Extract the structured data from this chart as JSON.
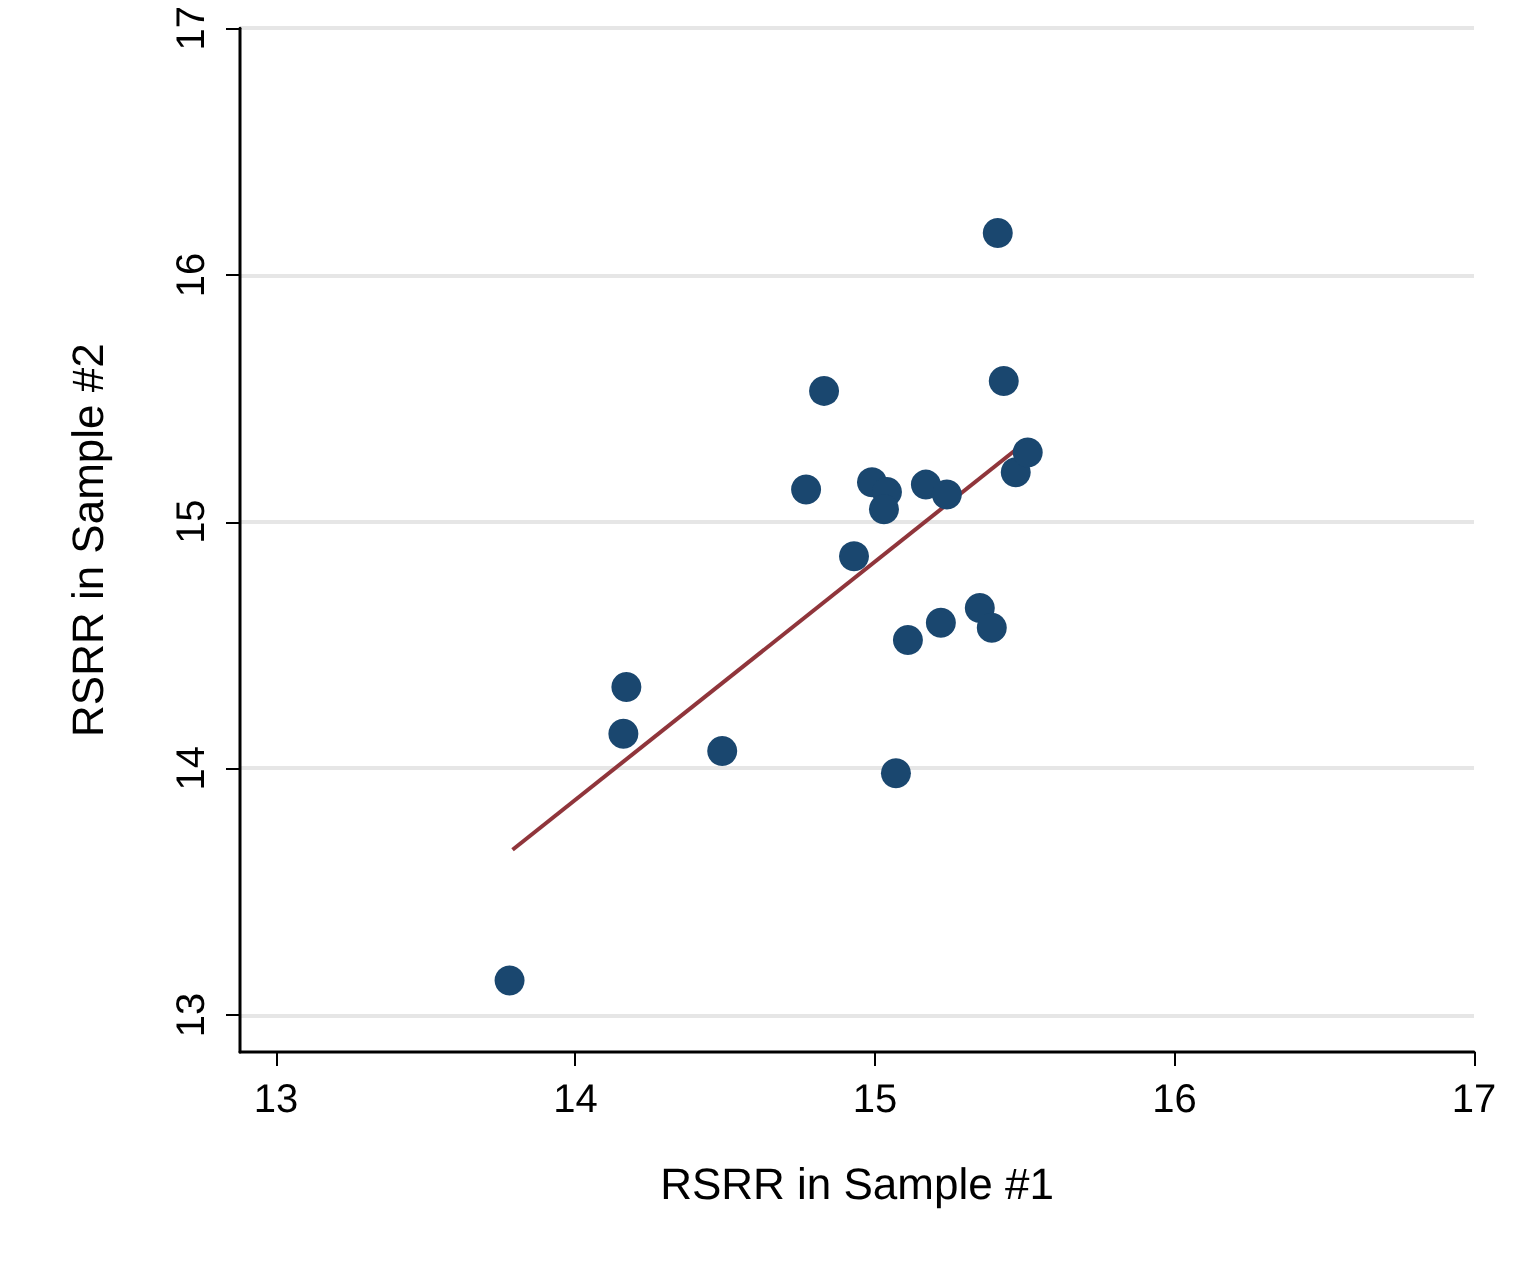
{
  "chart_data": {
    "type": "scatter",
    "xlabel": "RSRR in Sample #1",
    "ylabel": "RSRR in Sample #2",
    "xlim": [
      12.88,
      17
    ],
    "ylim": [
      12.85,
      17
    ],
    "xticks": [
      13,
      14,
      15,
      16,
      17
    ],
    "yticks": [
      13,
      14,
      15,
      16,
      17
    ],
    "grid": "y",
    "series": [
      {
        "color": "#1a476f",
        "marker": "circle",
        "x": [
          13.78,
          14.16,
          14.17,
          14.49,
          14.77,
          14.83,
          14.93,
          14.99,
          15.04,
          15.03,
          15.07,
          15.11,
          15.17,
          15.24,
          15.22,
          15.35,
          15.39,
          15.41,
          15.43,
          15.47,
          15.51
        ],
        "values": [
          13.14,
          14.14,
          14.33,
          14.07,
          15.13,
          15.53,
          14.86,
          15.16,
          15.12,
          15.05,
          13.98,
          14.52,
          15.15,
          15.11,
          14.59,
          14.65,
          14.57,
          16.17,
          15.57,
          15.2,
          15.28
        ]
      },
      {
        "type": "line",
        "color": "#90353b",
        "x": [
          13.79,
          15.51
        ],
        "values": [
          13.67,
          15.33
        ]
      }
    ]
  }
}
